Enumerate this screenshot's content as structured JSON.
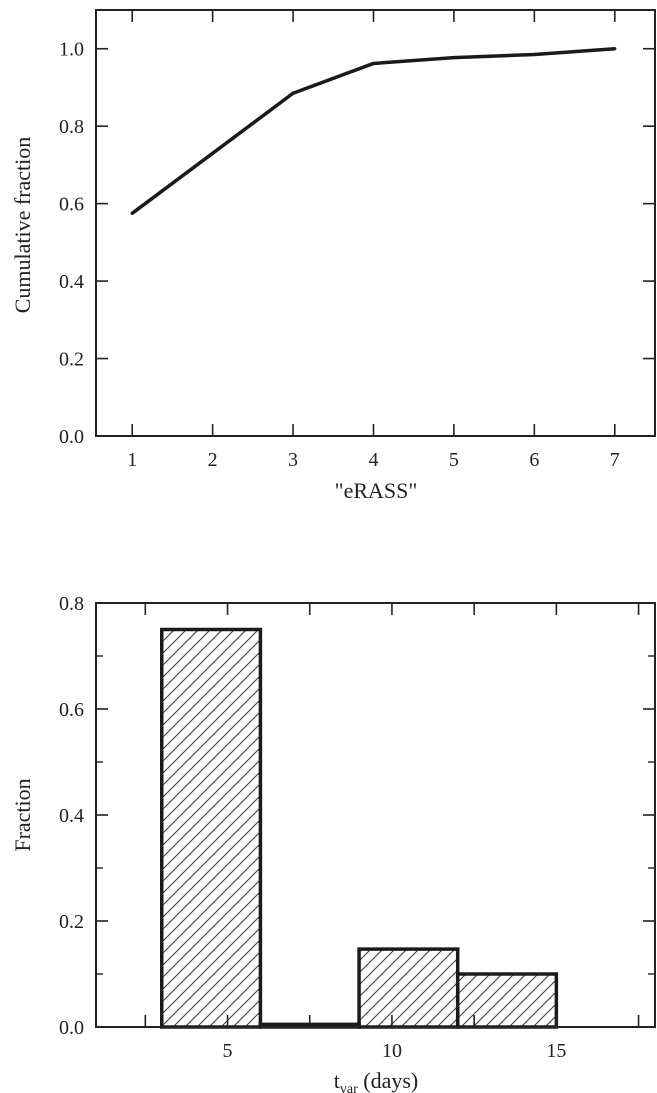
{
  "chart_data": [
    {
      "type": "line",
      "title": "",
      "xlabel": "\"eRASS\"",
      "ylabel": "Cumulative fraction",
      "xlim": [
        0.55,
        7.5
      ],
      "ylim": [
        0.0,
        1.1
      ],
      "x_ticks": [
        "1",
        "2",
        "3",
        "4",
        "5",
        "6",
        "7"
      ],
      "y_ticks": [
        "0.0",
        "0.2",
        "0.4",
        "0.6",
        "0.8",
        "1.0"
      ],
      "grid": false,
      "legend": "none",
      "series": [
        {
          "x": [
            1,
            2,
            3,
            4,
            5,
            6,
            7
          ],
          "values": [
            0.575,
            0.73,
            0.885,
            0.962,
            0.977,
            0.985,
            1.0
          ]
        }
      ],
      "colors": {
        "line": "#1a1a1a",
        "axes": "#222222"
      }
    },
    {
      "type": "bar",
      "title": "",
      "xlabel_main": "t",
      "xlabel_sub": "var",
      "xlabel_tail": " (days)",
      "ylabel": "Fraction",
      "xlim": [
        1.0,
        18.0
      ],
      "ylim": [
        0.0,
        0.8
      ],
      "x_ticks": [
        "5",
        "10",
        "15"
      ],
      "y_ticks": [
        "0.0",
        "0.2",
        "0.4",
        "0.6",
        "0.8"
      ],
      "grid": false,
      "legend": "none",
      "bins": [
        {
          "x0": 3,
          "x1": 6,
          "value": 0.75
        },
        {
          "x0": 6,
          "x1": 9,
          "value": 0.005
        },
        {
          "x0": 9,
          "x1": 12,
          "value": 0.147
        },
        {
          "x0": 12,
          "x1": 15,
          "value": 0.1
        }
      ],
      "fill_pattern": "diagonal-hatch",
      "colors": {
        "edge": "#1a1a1a",
        "hatch": "#3a3a3a",
        "axes": "#222222"
      }
    }
  ]
}
